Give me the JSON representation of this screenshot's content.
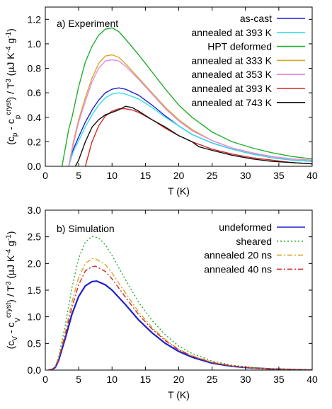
{
  "chart_data": [
    {
      "type": "line",
      "title": "a) Experiment",
      "xlabel": "T (K)",
      "ylabel": "(c_p - c_p^cryst) / T^3 (µJ K^-4 g^-1)",
      "xlim": [
        0,
        40
      ],
      "ylim": [
        0,
        1.3
      ],
      "xticks": [
        "0",
        "5",
        "10",
        "15",
        "20",
        "25",
        "30",
        "35",
        "40"
      ],
      "yticks": [
        "0.0",
        "0.2",
        "0.4",
        "0.6",
        "0.8",
        "1.0",
        "1.2"
      ],
      "legend_position": "top-right",
      "grid": false,
      "series": [
        {
          "name": "as-cast",
          "color": "#1f1fcf",
          "dash": "",
          "x": [
            3.5,
            4.2,
            5,
            6,
            7,
            8,
            9,
            10,
            11,
            12,
            14,
            16,
            18,
            20,
            22,
            25,
            28,
            31,
            34,
            37,
            40
          ],
          "y": [
            0.0,
            0.14,
            0.24,
            0.36,
            0.46,
            0.54,
            0.6,
            0.63,
            0.64,
            0.63,
            0.58,
            0.5,
            0.41,
            0.33,
            0.26,
            0.19,
            0.14,
            0.1,
            0.07,
            0.05,
            0.04
          ]
        },
        {
          "name": "annealed at 393 K",
          "color": "#33e0e8",
          "dash": "",
          "x": [
            3.5,
            4.2,
            5,
            6,
            7,
            8,
            9,
            10,
            11,
            12,
            14,
            16,
            18,
            20,
            22,
            25,
            28,
            31,
            34,
            37,
            40
          ],
          "y": [
            0.0,
            0.12,
            0.21,
            0.32,
            0.42,
            0.5,
            0.56,
            0.59,
            0.6,
            0.59,
            0.55,
            0.48,
            0.4,
            0.33,
            0.26,
            0.19,
            0.14,
            0.1,
            0.07,
            0.05,
            0.04
          ]
        },
        {
          "name": "HPT deformed",
          "color": "#22b02c",
          "dash": "",
          "x": [
            2.5,
            3,
            3.5,
            4,
            5,
            6,
            7,
            8,
            9,
            10,
            11,
            12,
            14,
            16,
            18,
            20,
            22,
            25,
            28,
            31,
            34,
            37,
            40
          ],
          "y": [
            0.0,
            0.15,
            0.3,
            0.4,
            0.65,
            0.85,
            0.98,
            1.07,
            1.12,
            1.13,
            1.1,
            1.04,
            0.91,
            0.77,
            0.63,
            0.5,
            0.4,
            0.28,
            0.2,
            0.15,
            0.11,
            0.08,
            0.06
          ]
        },
        {
          "name": "annealed at 333 K",
          "color": "#d4a829",
          "dash": "",
          "x": [
            3.5,
            4.2,
            5,
            6,
            7,
            8,
            9,
            10,
            11,
            12,
            14,
            16,
            18,
            20,
            22,
            25,
            28,
            31,
            34,
            37,
            40
          ],
          "y": [
            0.0,
            0.2,
            0.38,
            0.56,
            0.72,
            0.84,
            0.9,
            0.91,
            0.89,
            0.84,
            0.72,
            0.6,
            0.48,
            0.38,
            0.3,
            0.21,
            0.15,
            0.11,
            0.08,
            0.06,
            0.05
          ]
        },
        {
          "name": "annealed at 353 K",
          "color": "#e68ae0",
          "dash": "",
          "x": [
            3.5,
            4.2,
            5,
            6,
            7,
            8,
            9,
            10,
            11,
            12,
            14,
            16,
            18,
            20,
            22,
            25,
            28,
            31,
            34,
            37,
            40
          ],
          "y": [
            0.0,
            0.18,
            0.36,
            0.53,
            0.69,
            0.8,
            0.86,
            0.87,
            0.86,
            0.82,
            0.71,
            0.59,
            0.47,
            0.37,
            0.29,
            0.21,
            0.15,
            0.11,
            0.08,
            0.06,
            0.05
          ]
        },
        {
          "name": "annealed at 393 K",
          "color": "#d42828",
          "dash": "",
          "x": [
            6,
            7,
            8,
            9,
            10,
            11,
            12,
            13,
            14,
            16,
            18,
            20,
            22,
            25,
            28,
            31,
            34,
            37,
            40
          ],
          "y": [
            0.0,
            0.2,
            0.33,
            0.41,
            0.45,
            0.47,
            0.47,
            0.46,
            0.44,
            0.38,
            0.31,
            0.25,
            0.2,
            0.14,
            0.1,
            0.07,
            0.05,
            0.03,
            0.02
          ]
        },
        {
          "name": "annealed at 743 K",
          "color": "#111111",
          "dash": "",
          "x": [
            4.5,
            5,
            6,
            7,
            8,
            9,
            10,
            11,
            12,
            13,
            14,
            16,
            18,
            20,
            22,
            23,
            25,
            28,
            31,
            34,
            37,
            40
          ],
          "y": [
            0.0,
            0.05,
            0.2,
            0.32,
            0.38,
            0.42,
            0.44,
            0.46,
            0.49,
            0.48,
            0.45,
            0.38,
            0.32,
            0.25,
            0.2,
            0.16,
            0.13,
            0.09,
            0.06,
            0.04,
            0.03,
            0.02
          ]
        }
      ]
    },
    {
      "type": "line",
      "title": "b) Simulation",
      "xlabel": "T (K)",
      "ylabel": "(c_V - c_V^cryst) / T^3 (µJ K^-4 g^-1)",
      "xlim": [
        0,
        40
      ],
      "ylim": [
        0,
        3.0
      ],
      "xticks": [
        "0",
        "5",
        "10",
        "15",
        "20",
        "25",
        "30",
        "35",
        "40"
      ],
      "yticks": [
        "0.0",
        "0.5",
        "1.0",
        "1.5",
        "2.0",
        "2.5",
        "3.0"
      ],
      "legend_position": "top-right",
      "grid": false,
      "series": [
        {
          "name": "undeformed",
          "color": "#1f1fcf",
          "dash": "",
          "x": [
            0.5,
            1,
            1.5,
            2,
            3,
            4,
            5,
            6,
            7,
            7.7,
            9,
            10,
            12,
            14,
            16,
            18,
            20,
            22,
            25,
            28,
            31,
            34,
            37,
            40
          ],
          "y": [
            0.0,
            0.01,
            0.05,
            0.18,
            0.6,
            1.05,
            1.38,
            1.58,
            1.66,
            1.67,
            1.6,
            1.5,
            1.23,
            0.94,
            0.7,
            0.5,
            0.35,
            0.24,
            0.13,
            0.07,
            0.04,
            0.02,
            0.01,
            0.0
          ]
        },
        {
          "name": "sheared",
          "color": "#22b02c",
          "dash": "2,3",
          "x": [
            0.5,
            1,
            1.5,
            2,
            3,
            4,
            5,
            6,
            7,
            8,
            9,
            10,
            12,
            14,
            16,
            18,
            20,
            22,
            25,
            28,
            31,
            34,
            37,
            40
          ],
          "y": [
            0.0,
            0.01,
            0.07,
            0.25,
            0.85,
            1.55,
            2.1,
            2.4,
            2.51,
            2.48,
            2.35,
            2.15,
            1.7,
            1.27,
            0.93,
            0.66,
            0.45,
            0.31,
            0.17,
            0.09,
            0.05,
            0.02,
            0.01,
            0.0
          ]
        },
        {
          "name": "annealed 20 ns",
          "color": "#d4a829",
          "dash": "7,3,2,3",
          "x": [
            0.5,
            1,
            1.5,
            2,
            3,
            4,
            5,
            6,
            7,
            7.5,
            9,
            10,
            12,
            14,
            16,
            18,
            20,
            22,
            25,
            28,
            31,
            34,
            37,
            40
          ],
          "y": [
            0.0,
            0.01,
            0.06,
            0.22,
            0.72,
            1.28,
            1.74,
            2.0,
            2.09,
            2.09,
            1.98,
            1.82,
            1.45,
            1.09,
            0.8,
            0.57,
            0.39,
            0.27,
            0.15,
            0.08,
            0.04,
            0.02,
            0.01,
            0.0
          ]
        },
        {
          "name": "annealed 40 ns",
          "color": "#d42828",
          "dash": "7,3,2,3",
          "x": [
            0.5,
            1,
            1.5,
            2,
            3,
            4,
            5,
            6,
            7,
            7.5,
            9,
            10,
            12,
            14,
            16,
            18,
            20,
            22,
            25,
            28,
            31,
            34,
            37,
            40
          ],
          "y": [
            0.0,
            0.01,
            0.05,
            0.2,
            0.66,
            1.18,
            1.6,
            1.86,
            1.94,
            1.95,
            1.85,
            1.71,
            1.37,
            1.04,
            0.77,
            0.55,
            0.38,
            0.26,
            0.14,
            0.08,
            0.04,
            0.02,
            0.01,
            0.0
          ]
        }
      ]
    }
  ]
}
